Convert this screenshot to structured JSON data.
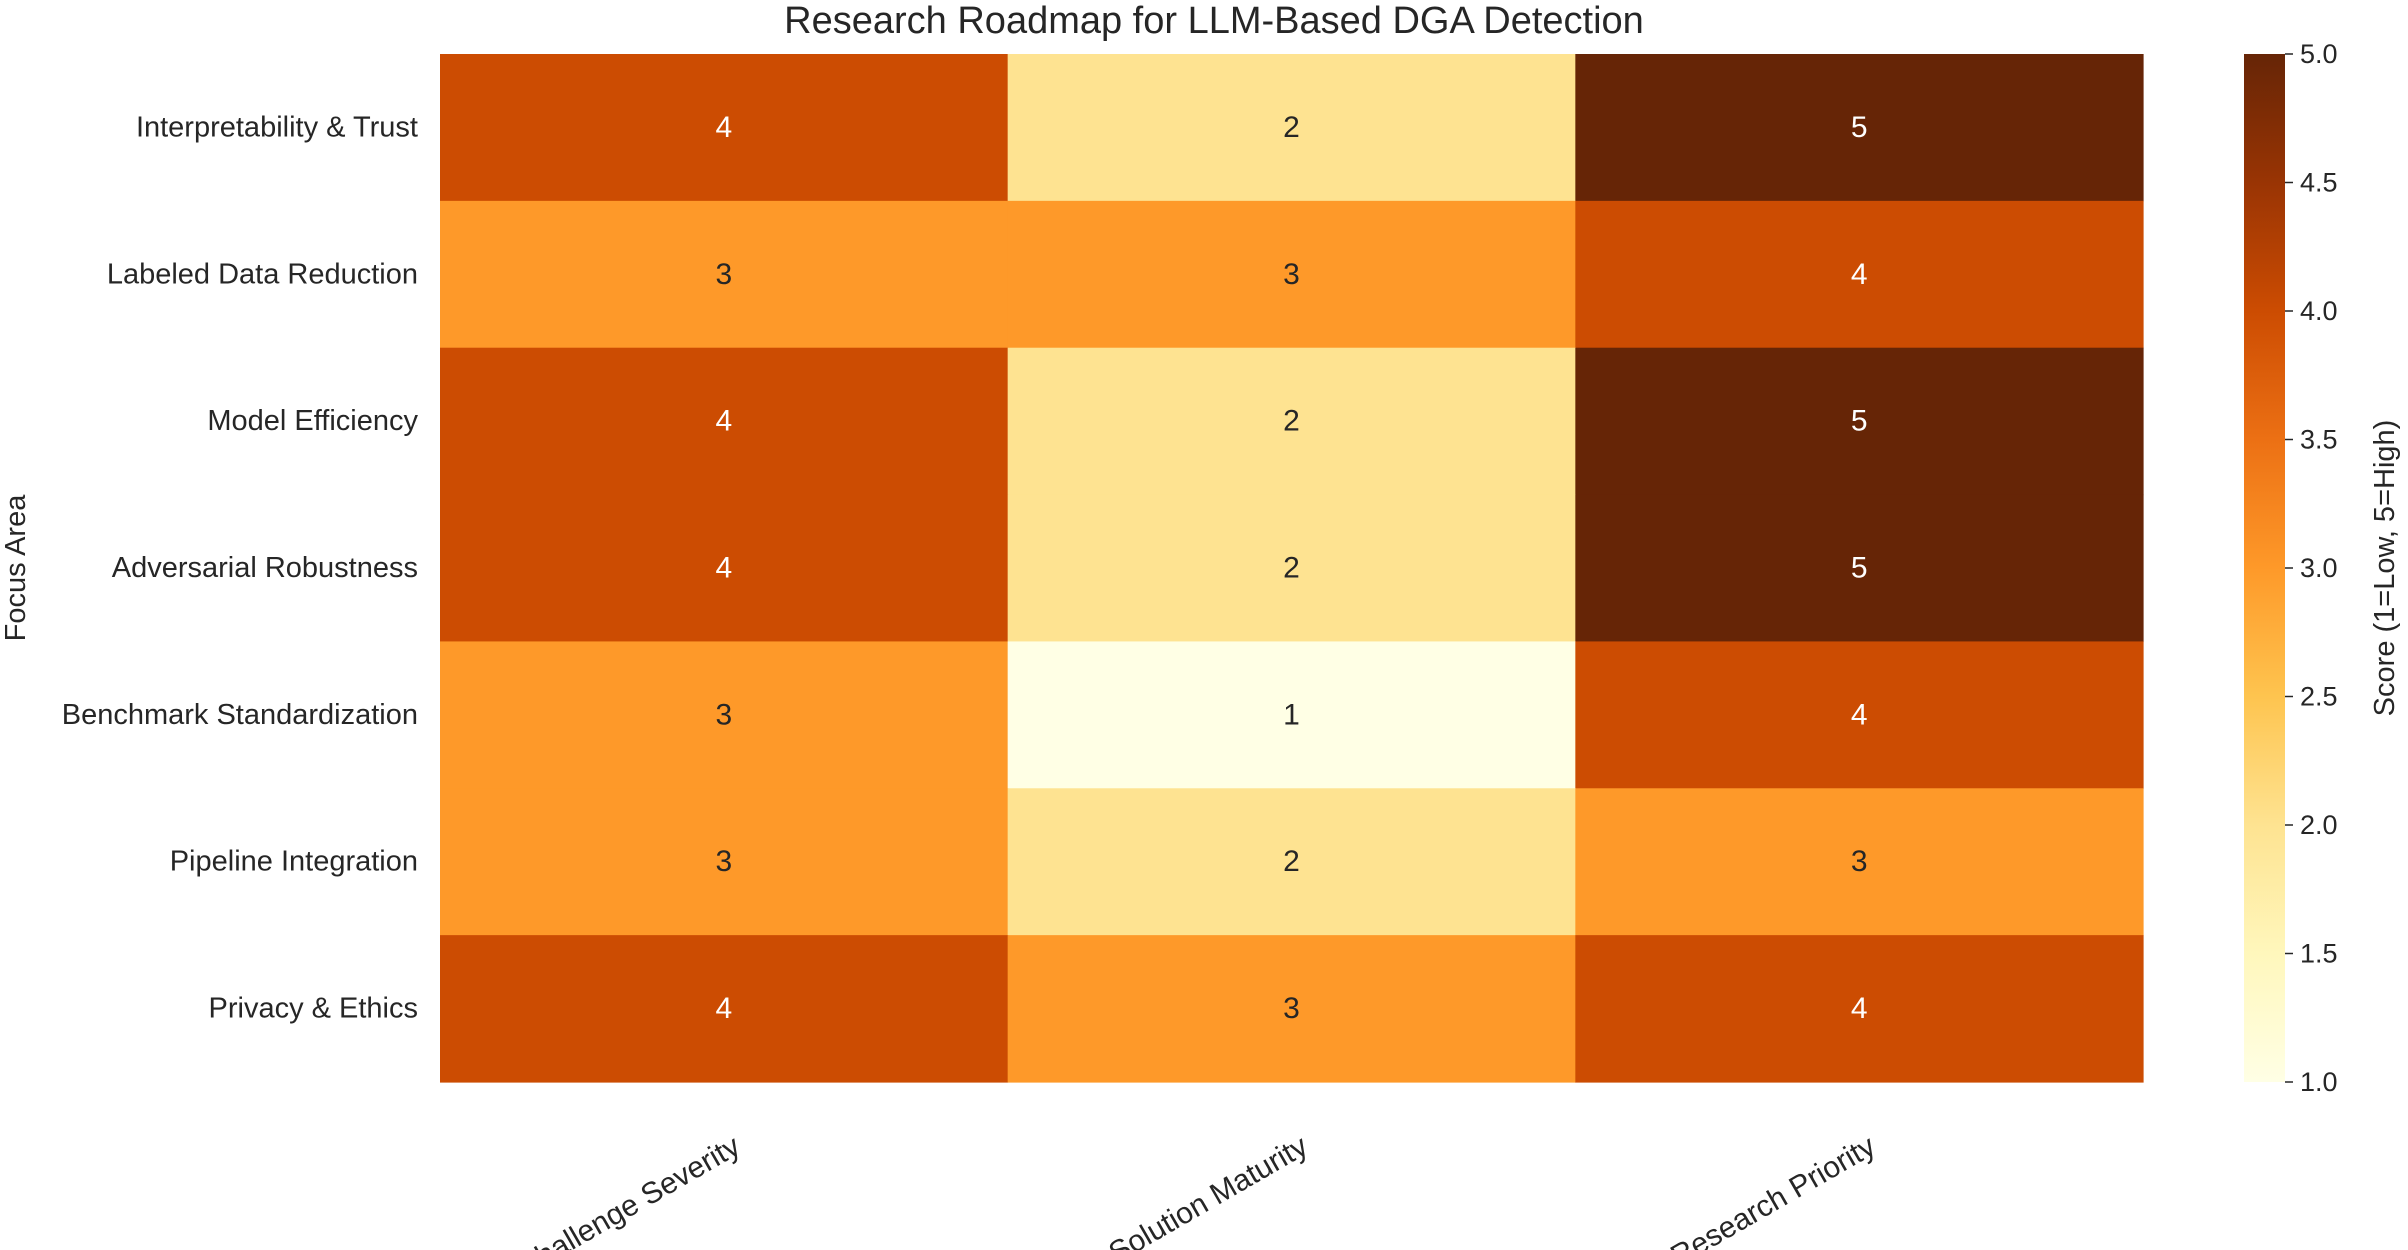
{
  "chart_data": {
    "type": "heatmap",
    "title": "Research Roadmap for LLM-Based DGA Detection",
    "ylabel": "Focus Area",
    "xlabel": "",
    "columns": [
      "Challenge Severity",
      "Solution Maturity",
      "Research Priority"
    ],
    "rows": [
      "Interpretability & Trust",
      "Labeled Data Reduction",
      "Model Efficiency",
      "Adversarial Robustness",
      "Benchmark Standardization",
      "Pipeline Integration",
      "Privacy & Ethics"
    ],
    "values": [
      [
        4,
        2,
        5
      ],
      [
        3,
        3,
        4
      ],
      [
        4,
        2,
        5
      ],
      [
        4,
        2,
        5
      ],
      [
        3,
        1,
        4
      ],
      [
        3,
        2,
        3
      ],
      [
        4,
        3,
        4
      ]
    ],
    "colormap": "YlOrBr",
    "vmin": 1.0,
    "vmax": 5.0,
    "colorbar": {
      "label": "Score (1=Low, 5=High)",
      "ticks": [
        "1.0",
        "1.5",
        "2.0",
        "2.5",
        "3.0",
        "3.5",
        "4.0",
        "4.5",
        "5.0"
      ]
    },
    "cell_colors": {
      "1": "#ffffe5",
      "2": "#fee391",
      "3": "#fe9929",
      "4": "#cc4c02",
      "5": "#662506"
    },
    "annotations": true
  }
}
